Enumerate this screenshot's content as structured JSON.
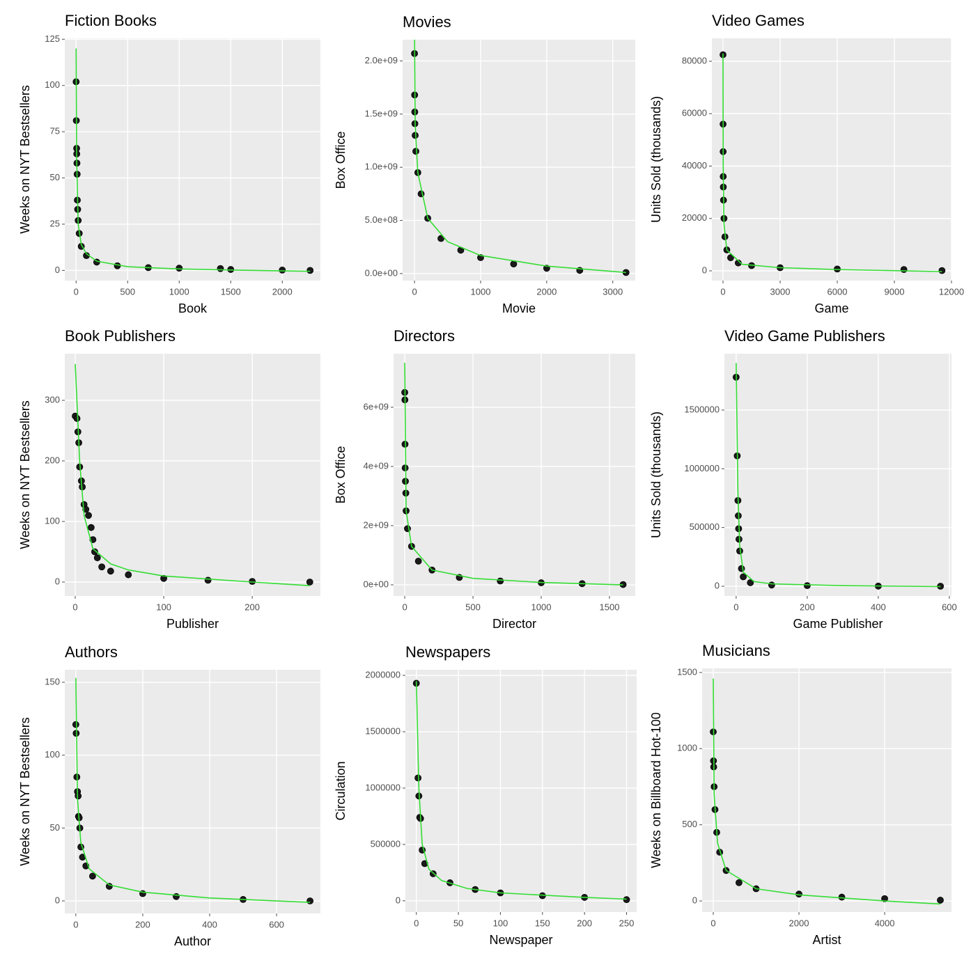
{
  "chart_data": [
    {
      "type": "scatter",
      "title": "Fiction Books",
      "xlabel": "Book",
      "ylabel": "Weeks on NYT Bestsellers",
      "xlim": [
        -110,
        2370
      ],
      "ylim": [
        -5.5,
        125.5
      ],
      "xticks": [
        0,
        500,
        1000,
        1500,
        2000
      ],
      "yticks": [
        0,
        25,
        50,
        75,
        100,
        125
      ],
      "grid": true,
      "series": [
        {
          "color": "#1a1a1a",
          "x": [
            0,
            2,
            5,
            6,
            8,
            10,
            12,
            15,
            20,
            30,
            50,
            100,
            200,
            400,
            700,
            1000,
            1400,
            1500,
            2000,
            2270
          ],
          "values": [
            102,
            81,
            66,
            63,
            58,
            52,
            38,
            33,
            27,
            20,
            13,
            8,
            4.5,
            2.5,
            1.5,
            1.2,
            1,
            0.5,
            0.2,
            0
          ]
        },
        {
          "color": "#33dd33",
          "style": "line",
          "x": [
            0,
            5,
            20,
            50,
            100,
            200,
            500,
            1000,
            1500,
            2270
          ],
          "values": [
            120,
            60,
            25,
            14,
            9,
            5,
            2,
            0.8,
            0.2,
            -0.5
          ]
        }
      ]
    },
    {
      "type": "scatter",
      "title": "Movies",
      "xlabel": "Movie",
      "ylabel": "Box Office",
      "xlim": [
        -180,
        3340
      ],
      "ylim": [
        -66000000,
        2200000000
      ],
      "xticks": [
        0,
        1000,
        2000,
        3000
      ],
      "yticks": [
        {
          "value": 0,
          "label": "0.0e+00"
        },
        {
          "value": 500000000,
          "label": "5.0e+08"
        },
        {
          "value": 1000000000,
          "label": "1.0e+09"
        },
        {
          "value": 1500000000,
          "label": "1.5e+09"
        },
        {
          "value": 2000000000,
          "label": "2.0e+09"
        }
      ],
      "grid": true,
      "series": [
        {
          "color": "#1a1a1a",
          "x": [
            0,
            2,
            4,
            6,
            10,
            20,
            50,
            100,
            200,
            400,
            700,
            1000,
            1500,
            2000,
            2500,
            3200
          ],
          "values": [
            2070000000,
            1680000000,
            1520000000,
            1410000000,
            1300000000,
            1150000000,
            950000000,
            750000000,
            520000000,
            330000000,
            220000000,
            150000000,
            90000000,
            50000000,
            30000000,
            10000000
          ]
        },
        {
          "color": "#33dd33",
          "style": "line",
          "x": [
            0,
            10,
            50,
            200,
            500,
            1000,
            2000,
            3200
          ],
          "values": [
            2300000000,
            1400000000,
            950000000,
            520000000,
            300000000,
            170000000,
            70000000,
            10000000
          ]
        }
      ]
    },
    {
      "type": "scatter",
      "title": "Video Games",
      "xlabel": "Game",
      "ylabel": "Units Sold (thousands)",
      "xlim": [
        -585,
        12000
      ],
      "ylim": [
        -3720,
        88770
      ],
      "xticks": [
        0,
        3000,
        6000,
        9000,
        12000
      ],
      "yticks": [
        0,
        20000,
        40000,
        60000,
        80000
      ],
      "grid": true,
      "series": [
        {
          "color": "#1a1a1a",
          "x": [
            0,
            3,
            6,
            10,
            15,
            25,
            50,
            100,
            200,
            400,
            800,
            1500,
            3000,
            6000,
            9500,
            11500
          ],
          "values": [
            82500,
            56000,
            45500,
            36000,
            32000,
            27000,
            20000,
            13000,
            8000,
            5000,
            3000,
            2000,
            1200,
            700,
            500,
            100
          ]
        },
        {
          "color": "#33dd33",
          "style": "line",
          "x": [
            0,
            10,
            50,
            200,
            1000,
            3000,
            6000,
            11500
          ],
          "values": [
            83000,
            40000,
            18000,
            8000,
            2500,
            1200,
            500,
            -300
          ]
        }
      ]
    },
    {
      "type": "scatter",
      "title": "Book Publishers",
      "xlabel": "Publisher",
      "ylabel": "Weeks on NYT Bestsellers",
      "xlim": [
        -11.8,
        277
      ],
      "ylim": [
        -23,
        377
      ],
      "xticks": [
        0,
        100,
        200
      ],
      "yticks": [
        0,
        100,
        200,
        300
      ],
      "grid": true,
      "series": [
        {
          "color": "#1a1a1a",
          "x": [
            0,
            2,
            3,
            4,
            5,
            7,
            8,
            10,
            12,
            15,
            18,
            20,
            22,
            25,
            30,
            40,
            60,
            100,
            150,
            200,
            265
          ],
          "values": [
            274,
            270,
            248,
            230,
            190,
            167,
            157,
            128,
            120,
            110,
            90,
            70,
            50,
            40,
            25,
            18,
            12,
            6,
            3,
            1,
            0
          ]
        },
        {
          "color": "#33dd33",
          "style": "line",
          "x": [
            0,
            5,
            10,
            20,
            40,
            60,
            100,
            150,
            200,
            265
          ],
          "values": [
            360,
            200,
            110,
            55,
            30,
            20,
            10,
            5,
            0,
            -6
          ]
        }
      ]
    },
    {
      "type": "scatter",
      "title": "Directors",
      "xlabel": "Director",
      "ylabel": "Box Office",
      "xlim": [
        -82,
        1689
      ],
      "ylim": [
        -376000000,
        7810000000
      ],
      "xticks": [
        0,
        500,
        1000,
        1500
      ],
      "yticks": [
        {
          "value": 0,
          "label": "0e+00"
        },
        {
          "value": 2000000000,
          "label": "2e+09"
        },
        {
          "value": 4000000000,
          "label": "4e+09"
        },
        {
          "value": 6000000000,
          "label": "6e+09"
        }
      ],
      "grid": true,
      "series": [
        {
          "color": "#1a1a1a",
          "x": [
            0,
            1,
            2,
            3,
            5,
            8,
            10,
            20,
            50,
            100,
            200,
            400,
            700,
            1000,
            1300,
            1600
          ],
          "values": [
            6500000000,
            6250000000,
            4750000000,
            3950000000,
            3500000000,
            3100000000,
            2500000000,
            1900000000,
            1300000000,
            800000000,
            500000000,
            250000000,
            130000000,
            70000000,
            40000000,
            10000000
          ]
        },
        {
          "color": "#33dd33",
          "style": "line",
          "x": [
            0,
            10,
            50,
            200,
            500,
            1000,
            1600
          ],
          "values": [
            7500000000,
            2500000000,
            1300000000,
            500000000,
            220000000,
            80000000,
            0
          ]
        }
      ]
    },
    {
      "type": "scatter",
      "title": "Video Game Publishers",
      "xlabel": "Game Publisher",
      "ylabel": "Units Sold (thousands)",
      "xlim": [
        -33,
        606
      ],
      "ylim": [
        -83000,
        1980000
      ],
      "xticks": [
        0,
        200,
        400,
        600
      ],
      "yticks": [
        0,
        500000,
        1000000,
        1500000
      ],
      "grid": true,
      "series": [
        {
          "color": "#1a1a1a",
          "x": [
            0,
            3,
            5,
            6,
            7,
            8,
            10,
            15,
            20,
            40,
            100,
            200,
            400,
            575
          ],
          "values": [
            1780000,
            1110000,
            730000,
            600000,
            490000,
            400000,
            300000,
            150000,
            80000,
            30000,
            10000,
            5000,
            1000,
            0
          ]
        },
        {
          "color": "#33dd33",
          "style": "line",
          "x": [
            0,
            5,
            10,
            20,
            50,
            100,
            300,
            575
          ],
          "values": [
            1900000,
            800000,
            350000,
            120000,
            40000,
            20000,
            5000,
            -3000
          ]
        }
      ]
    },
    {
      "type": "scatter",
      "title": "Authors",
      "xlabel": "Author",
      "ylabel": "Weeks on NYT Bestsellers",
      "xlim": [
        -33,
        731
      ],
      "ylim": [
        -8.6,
        158.6
      ],
      "xticks": [
        0,
        200,
        400,
        600
      ],
      "yticks": [
        0,
        50,
        100,
        150
      ],
      "grid": true,
      "series": [
        {
          "color": "#1a1a1a",
          "x": [
            0,
            1,
            3,
            5,
            7,
            8,
            10,
            12,
            15,
            20,
            30,
            50,
            100,
            200,
            300,
            500,
            700
          ],
          "values": [
            121,
            115,
            85,
            75,
            72,
            58,
            57,
            50,
            37,
            30,
            24,
            17,
            10,
            5,
            3,
            1,
            0
          ]
        },
        {
          "color": "#33dd33",
          "style": "line",
          "x": [
            0,
            5,
            15,
            40,
            100,
            200,
            400,
            700
          ],
          "values": [
            153,
            70,
            40,
            22,
            11,
            6,
            2,
            -1
          ]
        }
      ]
    },
    {
      "type": "scatter",
      "title": "Newspapers",
      "xlabel": "Newspaper",
      "ylabel": "Circulation",
      "xlim": [
        -13,
        262
      ],
      "ylim": [
        -100000,
        2050000
      ],
      "xticks": [
        0,
        50,
        100,
        150,
        200,
        250
      ],
      "yticks": [
        0,
        500000,
        1000000,
        1500000,
        2000000
      ],
      "grid": true,
      "series": [
        {
          "color": "#1a1a1a",
          "x": [
            0,
            2,
            3,
            4,
            5,
            7,
            10,
            20,
            40,
            70,
            100,
            150,
            200,
            250
          ],
          "values": [
            1930000,
            1090000,
            930000,
            740000,
            730000,
            450000,
            330000,
            240000,
            160000,
            100000,
            70000,
            45000,
            30000,
            10000
          ]
        },
        {
          "color": "#33dd33",
          "style": "line",
          "x": [
            0,
            3,
            7,
            15,
            30,
            60,
            100,
            200,
            250
          ],
          "values": [
            1950000,
            1000000,
            500000,
            280000,
            180000,
            110000,
            70000,
            30000,
            15000
          ]
        }
      ]
    },
    {
      "type": "scatter",
      "title": "Musicians",
      "xlabel": "Artist",
      "ylabel": "Weeks on Billboard Hot-100",
      "xlim": [
        -260,
        5560
      ],
      "ylim": [
        -73,
        1527
      ],
      "xticks": [
        0,
        2000,
        4000
      ],
      "yticks": [
        0,
        500,
        1000,
        1500
      ],
      "grid": true,
      "series": [
        {
          "color": "#1a1a1a",
          "x": [
            0,
            5,
            10,
            20,
            40,
            80,
            150,
            300,
            600,
            1000,
            2000,
            3000,
            4000,
            5300
          ],
          "values": [
            1110,
            920,
            880,
            750,
            600,
            450,
            320,
            200,
            120,
            80,
            45,
            25,
            15,
            5
          ]
        },
        {
          "color": "#33dd33",
          "style": "line",
          "x": [
            0,
            20,
            100,
            300,
            1000,
            2000,
            4000,
            5300
          ],
          "values": [
            1460,
            700,
            380,
            200,
            80,
            40,
            0,
            -20
          ]
        }
      ]
    }
  ]
}
